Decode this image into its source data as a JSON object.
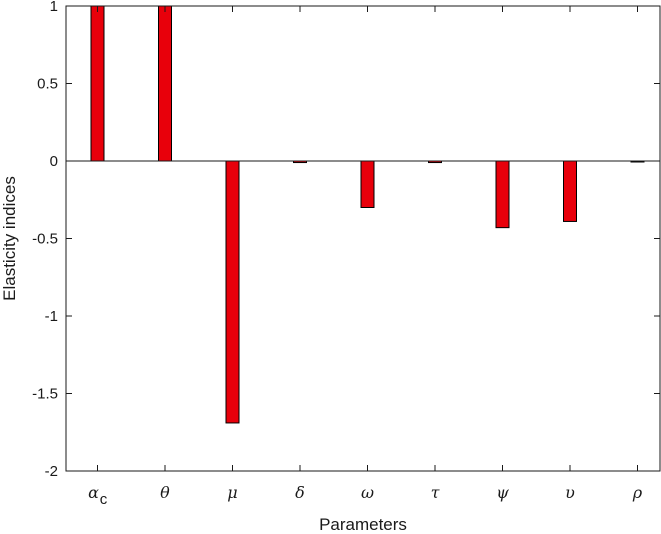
{
  "chart_data": {
    "type": "bar",
    "categories": [
      "αc",
      "θ",
      "μ",
      "δ",
      "ω",
      "τ",
      "ψ",
      "υ",
      "ρ"
    ],
    "category_labels": [
      {
        "main": "α",
        "sub": "c"
      },
      {
        "main": "θ",
        "sub": ""
      },
      {
        "main": "μ",
        "sub": ""
      },
      {
        "main": "δ",
        "sub": ""
      },
      {
        "main": "ω",
        "sub": ""
      },
      {
        "main": "τ",
        "sub": ""
      },
      {
        "main": "ψ",
        "sub": ""
      },
      {
        "main": "υ",
        "sub": ""
      },
      {
        "main": "ρ",
        "sub": ""
      }
    ],
    "values": [
      1,
      1,
      -1.69,
      -0.01,
      -0.3,
      -0.01,
      -0.43,
      -0.39,
      -0.005
    ],
    "xlabel": "Parameters",
    "ylabel": "Elasticity indices",
    "ylim": [
      -2,
      1
    ],
    "yticks": [
      1,
      0.5,
      0,
      -0.5,
      -1,
      -1.5,
      -2
    ],
    "ytick_labels": [
      "1",
      "0.5",
      "0",
      "-0.5",
      "-1",
      "-1.5",
      "-2"
    ],
    "grid": false,
    "bar_color": "#e8000b",
    "bar_edge_color": "#000000",
    "zero_line": true
  }
}
